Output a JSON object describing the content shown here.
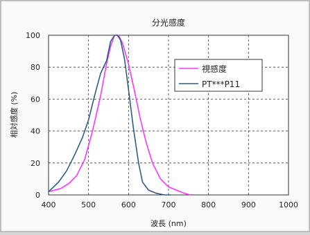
{
  "chart_data": {
    "type": "line",
    "title": "分光感度",
    "xlabel": "波長 (nm)",
    "ylabel": "相対感度 (%)",
    "xlim": [
      400,
      1000
    ],
    "ylim": [
      0,
      100
    ],
    "x_ticks": [
      "400",
      "500",
      "600",
      "700",
      "800",
      "900",
      "1000"
    ],
    "y_ticks": [
      "0",
      "20",
      "40",
      "60",
      "80",
      "100"
    ],
    "grid": true,
    "legend_position": "upper-right",
    "series": [
      {
        "name": "視感度",
        "color": "#ff33ff",
        "points": [
          [
            400,
            2
          ],
          [
            430,
            4
          ],
          [
            450,
            7
          ],
          [
            470,
            12
          ],
          [
            490,
            22
          ],
          [
            510,
            40
          ],
          [
            530,
            62
          ],
          [
            545,
            82
          ],
          [
            555,
            93
          ],
          [
            565,
            100
          ],
          [
            575,
            100
          ],
          [
            585,
            95
          ],
          [
            600,
            82
          ],
          [
            615,
            65
          ],
          [
            630,
            47
          ],
          [
            645,
            32
          ],
          [
            660,
            20
          ],
          [
            680,
            10
          ],
          [
            700,
            5
          ],
          [
            720,
            3
          ],
          [
            740,
            1
          ],
          [
            755,
            0
          ]
        ]
      },
      {
        "name": "PT***P11",
        "color": "#2c5b8a",
        "points": [
          [
            400,
            2
          ],
          [
            425,
            8
          ],
          [
            445,
            15
          ],
          [
            465,
            25
          ],
          [
            485,
            36
          ],
          [
            500,
            47
          ],
          [
            515,
            62
          ],
          [
            530,
            76
          ],
          [
            545,
            84
          ],
          [
            555,
            96
          ],
          [
            565,
            100
          ],
          [
            572,
            100
          ],
          [
            580,
            97
          ],
          [
            590,
            85
          ],
          [
            600,
            66
          ],
          [
            612,
            42
          ],
          [
            625,
            20
          ],
          [
            635,
            8
          ],
          [
            650,
            3
          ],
          [
            670,
            1
          ],
          [
            690,
            0
          ],
          [
            705,
            0
          ]
        ]
      }
    ]
  }
}
